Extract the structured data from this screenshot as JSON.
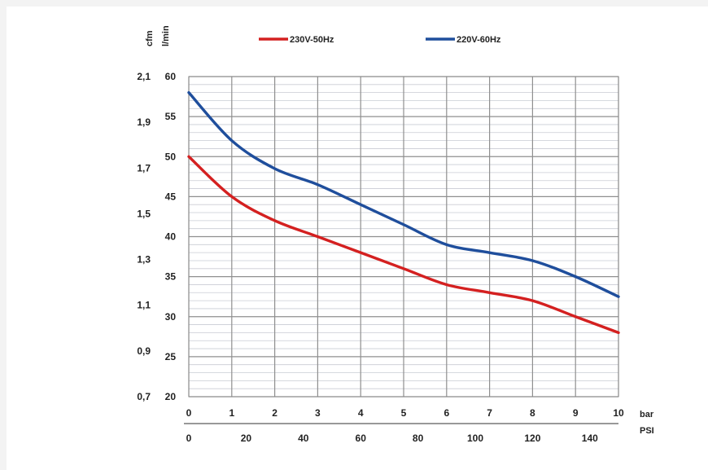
{
  "chart_data": {
    "type": "line",
    "axis_units": {
      "left_outer": "cfm",
      "left_inner": "l/min",
      "bottom_upper": "bar",
      "bottom_lower": "PSI"
    },
    "x_bar_ticks": [
      0,
      1,
      2,
      3,
      4,
      5,
      6,
      7,
      8,
      9,
      10
    ],
    "x_psi_ticks": [
      0,
      20,
      40,
      60,
      80,
      100,
      120,
      140
    ],
    "y_lmin_ticks": [
      20,
      25,
      30,
      35,
      40,
      45,
      50,
      55,
      60
    ],
    "y_cfm_ticks": [
      "0,7",
      "0,9",
      "1,1",
      "1,3",
      "1,5",
      "1,7",
      "1,9",
      "2,1"
    ],
    "xlim": [
      0,
      10
    ],
    "ylim": [
      20,
      60
    ],
    "grid": true,
    "legend_position": "top",
    "series": [
      {
        "name": "230V-50Hz",
        "color": "#d42020",
        "x": [
          0,
          1,
          2,
          3,
          4,
          5,
          6,
          7,
          8,
          9,
          10
        ],
        "y": [
          50,
          45,
          42,
          40,
          38,
          36,
          34,
          33,
          32,
          30,
          28
        ]
      },
      {
        "name": "220V-60Hz",
        "color": "#1f4e9c",
        "x": [
          0,
          1,
          2,
          3,
          4,
          5,
          6,
          7,
          8,
          9,
          10
        ],
        "y": [
          58,
          52,
          48.5,
          46.5,
          44,
          41.5,
          39,
          38,
          37,
          35,
          32.5
        ]
      }
    ]
  }
}
